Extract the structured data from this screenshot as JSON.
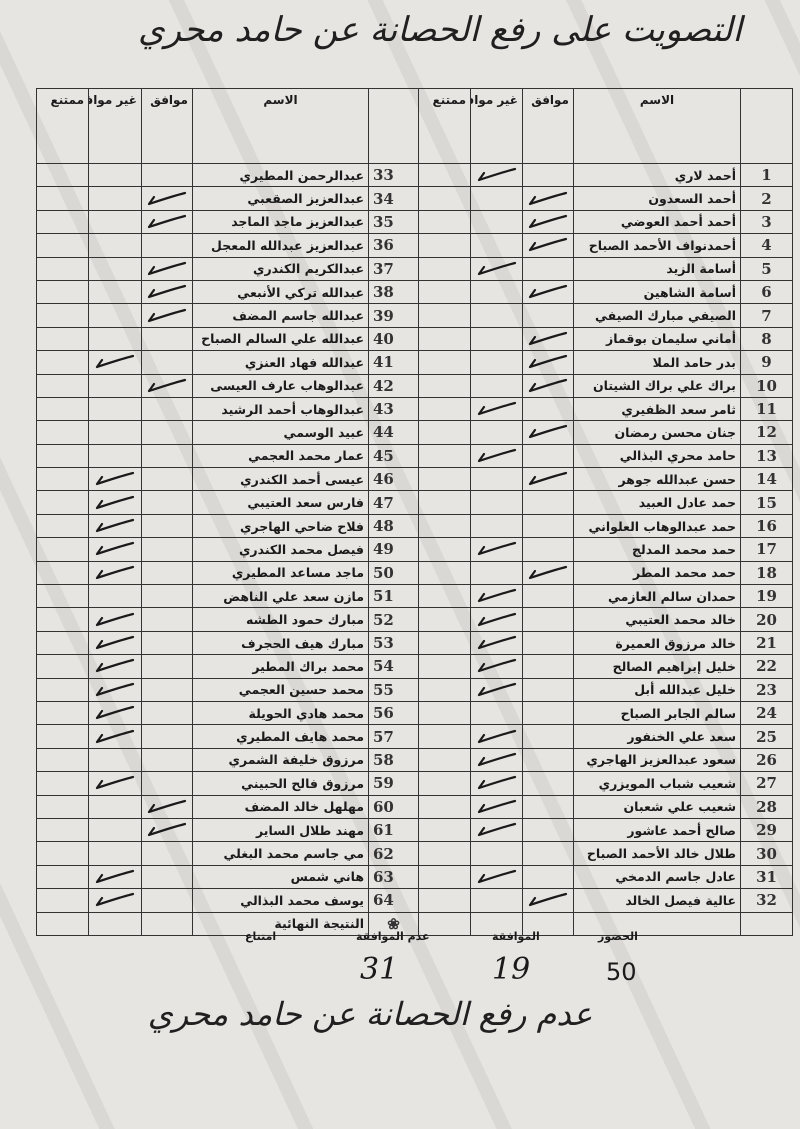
{
  "title": "التصويت على رفع الحصانة عن حامد محري",
  "columns": {
    "number": "",
    "name": "الاسم",
    "agree": "موافق",
    "disagree": "غير موافق",
    "abstain": "ممتنع"
  },
  "rows": [
    {
      "num": "1",
      "name": "أحمد لاري",
      "vote": "disagree"
    },
    {
      "num": "2",
      "name": "أحمد السعدون",
      "vote": "agree"
    },
    {
      "num": "3",
      "name": "أحمد أحمد العوضي",
      "vote": "agree"
    },
    {
      "num": "4",
      "name": "أحمدنواف الأحمد الصباح",
      "vote": "agree"
    },
    {
      "num": "5",
      "name": "أسامة الزيد",
      "vote": "disagree"
    },
    {
      "num": "6",
      "name": "أسامة الشاهين",
      "vote": "agree"
    },
    {
      "num": "7",
      "name": "الصيفي مبارك الصيفي",
      "vote": ""
    },
    {
      "num": "8",
      "name": "أماني سليمان بوقماز",
      "vote": "agree"
    },
    {
      "num": "9",
      "name": "بدر حامد الملا",
      "vote": "agree"
    },
    {
      "num": "10",
      "name": "براك علي براك الشيتان",
      "vote": "agree"
    },
    {
      "num": "11",
      "name": "ثامر سعد الظفيري",
      "vote": "disagree"
    },
    {
      "num": "12",
      "name": "جنان محسن رمضان",
      "vote": "agree"
    },
    {
      "num": "13",
      "name": "حامد محري البذالي",
      "vote": "disagree"
    },
    {
      "num": "14",
      "name": "حسن عبدالله جوهر",
      "vote": "agree"
    },
    {
      "num": "15",
      "name": "حمد عادل العبيد",
      "vote": ""
    },
    {
      "num": "16",
      "name": "حمد عبدالوهاب العلواني",
      "vote": ""
    },
    {
      "num": "17",
      "name": "حمد محمد المدلج",
      "vote": "disagree"
    },
    {
      "num": "18",
      "name": "حمد محمد المطر",
      "vote": "agree"
    },
    {
      "num": "19",
      "name": "حمدان سالم العازمي",
      "vote": "disagree"
    },
    {
      "num": "20",
      "name": "خالد محمد العتيبي",
      "vote": "disagree"
    },
    {
      "num": "21",
      "name": "خالد مرزوق العميرة",
      "vote": "disagree"
    },
    {
      "num": "22",
      "name": "خليل إبراهيم الصالح",
      "vote": "disagree"
    },
    {
      "num": "23",
      "name": "خليل عبدالله أبل",
      "vote": "disagree"
    },
    {
      "num": "24",
      "name": "سالم الجابر الصباح",
      "vote": ""
    },
    {
      "num": "25",
      "name": "سعد علي الخنفور",
      "vote": "disagree"
    },
    {
      "num": "26",
      "name": "سعود عبدالعزيز الهاجري",
      "vote": "disagree"
    },
    {
      "num": "27",
      "name": "شعيب شباب المويزري",
      "vote": "disagree"
    },
    {
      "num": "28",
      "name": "شعيب علي شعبان",
      "vote": "disagree"
    },
    {
      "num": "29",
      "name": "صالح أحمد عاشور",
      "vote": "disagree"
    },
    {
      "num": "30",
      "name": "طلال خالد الأحمد الصباح",
      "vote": ""
    },
    {
      "num": "31",
      "name": "عادل جاسم الدمخي",
      "vote": "disagree"
    },
    {
      "num": "32",
      "name": "عالية فيصل الخالد",
      "vote": "agree"
    },
    {
      "num": "33",
      "name": "عبدالرحمن المطيري",
      "vote": ""
    },
    {
      "num": "34",
      "name": "عبدالعزيز الصقعبي",
      "vote": "agree"
    },
    {
      "num": "35",
      "name": "عبدالعزيز ماجد الماجد",
      "vote": "agree"
    },
    {
      "num": "36",
      "name": "عبدالعزيز عبدالله المعجل",
      "vote": ""
    },
    {
      "num": "37",
      "name": "عبدالكريم الكندري",
      "vote": "agree"
    },
    {
      "num": "38",
      "name": "عبدالله تركي الأنبعي",
      "vote": "agree"
    },
    {
      "num": "39",
      "name": "عبدالله جاسم المضف",
      "vote": "agree"
    },
    {
      "num": "40",
      "name": "عبدالله علي السالم الصباح",
      "vote": ""
    },
    {
      "num": "41",
      "name": "عبدالله فهاد العنزي",
      "vote": "disagree"
    },
    {
      "num": "42",
      "name": "عبدالوهاب عارف العيسى",
      "vote": "agree"
    },
    {
      "num": "43",
      "name": "عبدالوهاب أحمد الرشيد",
      "vote": ""
    },
    {
      "num": "44",
      "name": "عبيد الوسمي",
      "vote": ""
    },
    {
      "num": "45",
      "name": "عمار محمد العجمي",
      "vote": ""
    },
    {
      "num": "46",
      "name": "عيسى أحمد الكندري",
      "vote": "disagree"
    },
    {
      "num": "47",
      "name": "فارس سعد العتيبي",
      "vote": "disagree"
    },
    {
      "num": "48",
      "name": "فلاح ضاحي الهاجري",
      "vote": "disagree"
    },
    {
      "num": "49",
      "name": "فيصل محمد الكندري",
      "vote": "disagree"
    },
    {
      "num": "50",
      "name": "ماجد مساعد المطيري",
      "vote": "disagree"
    },
    {
      "num": "51",
      "name": "مازن سعد علي الناهض",
      "vote": ""
    },
    {
      "num": "52",
      "name": "مبارك حمود الطشه",
      "vote": "disagree"
    },
    {
      "num": "53",
      "name": "مبارك هيف الحجرف",
      "vote": "disagree"
    },
    {
      "num": "54",
      "name": "محمد براك المطير",
      "vote": "disagree"
    },
    {
      "num": "55",
      "name": "محمد حسين العجمي",
      "vote": "disagree"
    },
    {
      "num": "56",
      "name": "محمد هادي الحويلة",
      "vote": "disagree"
    },
    {
      "num": "57",
      "name": "محمد هايف المطيري",
      "vote": "disagree"
    },
    {
      "num": "58",
      "name": "مرزوق خليفة الشمري",
      "vote": ""
    },
    {
      "num": "59",
      "name": "مرزوق فالح الحبيني",
      "vote": "disagree"
    },
    {
      "num": "60",
      "name": "مهلهل خالد المضف",
      "vote": "agree"
    },
    {
      "num": "61",
      "name": "مهند طلال الساير",
      "vote": "agree"
    },
    {
      "num": "62",
      "name": "مي جاسم محمد البغلي",
      "vote": ""
    },
    {
      "num": "63",
      "name": "هاني شمس",
      "vote": "disagree"
    },
    {
      "num": "64",
      "name": "يوسف محمد البذالي",
      "vote": "disagree"
    }
  ],
  "final_result_label": "النتيجة النهائية",
  "summary": {
    "attendance_label": "الحضور",
    "attendance": "50",
    "agree_label": "الموافقة",
    "agree": "19",
    "disagree_label": "عدم الموافقة",
    "disagree": "31",
    "abstain_label": "امتناع",
    "abstain": ""
  },
  "footer_note": "عدم رفع الحصانة عن حامد محري",
  "icons": {
    "vote_mark": "checkmark-icon",
    "stamp": "stamp-icon"
  }
}
